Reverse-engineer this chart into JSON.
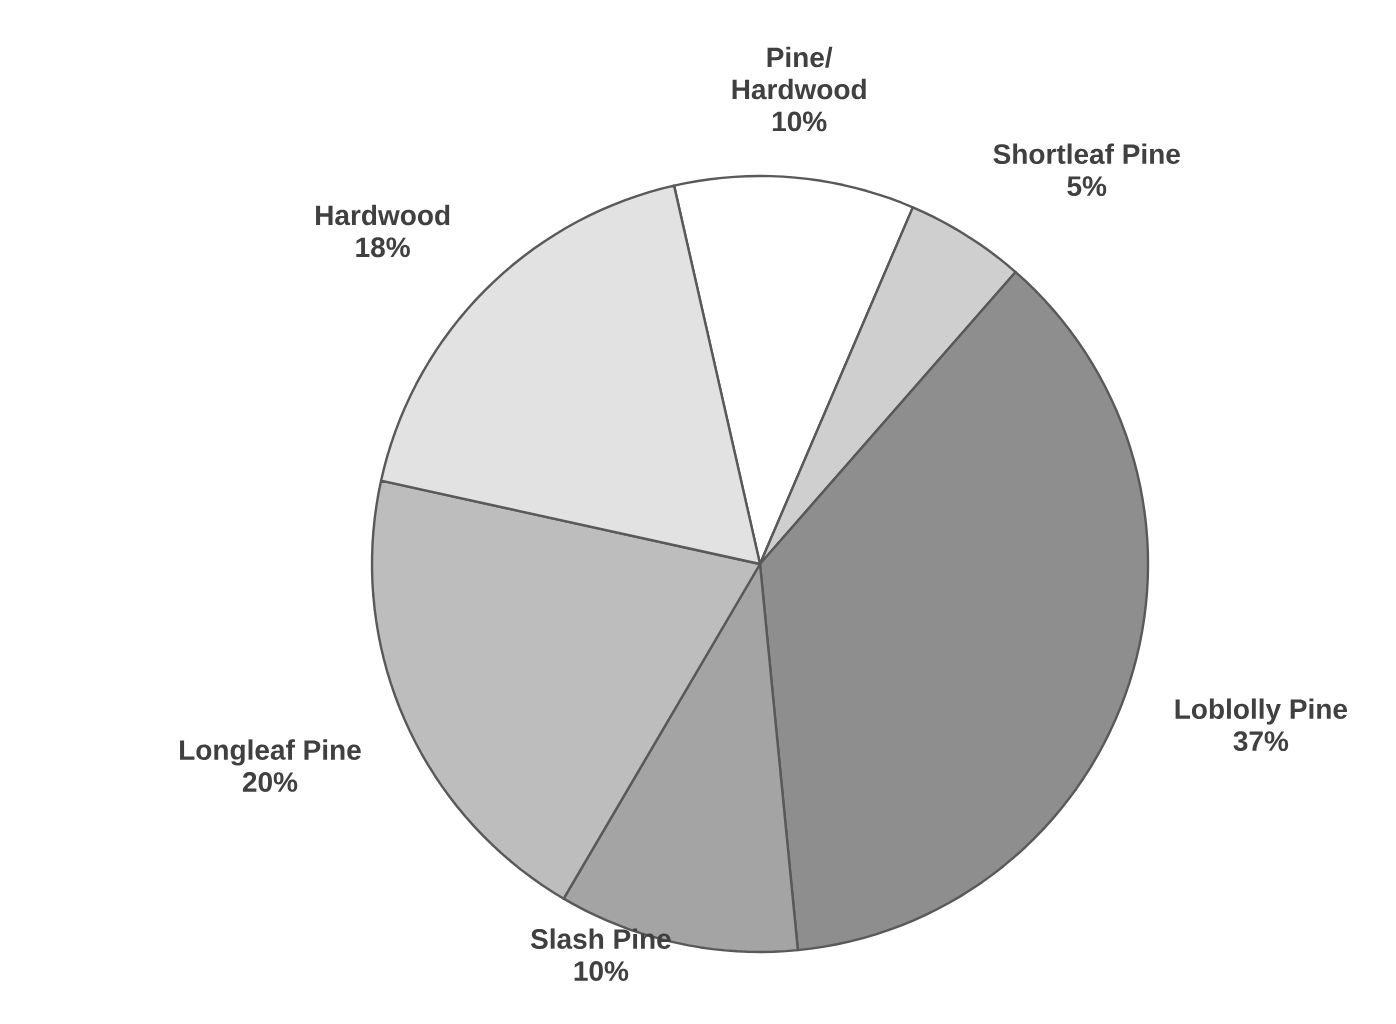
{
  "chart_data": {
    "type": "pie",
    "categories": [
      "Pine/ Hardwood",
      "Shortleaf Pine",
      "Loblolly Pine",
      "Slash Pine",
      "Longleaf Pine",
      "Hardwood"
    ],
    "values": [
      10,
      5,
      37,
      10,
      20,
      18
    ],
    "value_labels": [
      "10%",
      "5%",
      "37%",
      "10%",
      "20%",
      "18%"
    ],
    "colors": [
      "#ffffff",
      "#cfcfcf",
      "#8e8e8e",
      "#a4a4a4",
      "#bdbdbd",
      "#e2e2e2"
    ]
  }
}
